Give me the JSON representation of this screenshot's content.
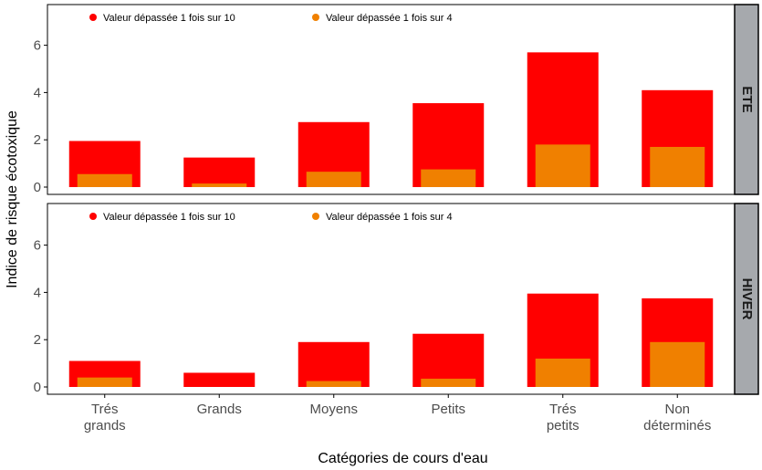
{
  "chart_data": {
    "type": "bar",
    "xlabel": "Catégories de cours d'eau",
    "ylabel": "Indice de risque écotoxique",
    "categories": [
      [
        "Trés",
        "grands"
      ],
      [
        "Grands"
      ],
      [
        "Moyens"
      ],
      [
        "Petits"
      ],
      [
        "Trés",
        "petits"
      ],
      [
        "Non",
        "déterminés"
      ]
    ],
    "ylim": [
      -0.5,
      7.5
    ],
    "yticks": [
      0,
      2,
      4,
      6
    ],
    "legend": [
      {
        "label": "Valeur dépassée 1 fois sur 10",
        "color": "#ff0000"
      },
      {
        "label": "Valeur dépassée 1 fois sur 4",
        "color": "#f08000"
      }
    ],
    "panels": [
      {
        "strip": "ETE",
        "series": [
          {
            "name": "Valeur dépassée 1 fois sur 10",
            "values": [
              1.95,
              1.25,
              2.75,
              3.55,
              5.7,
              4.1
            ]
          },
          {
            "name": "Valeur dépassée 1 fois sur 4",
            "values": [
              0.55,
              0.15,
              0.65,
              0.75,
              1.8,
              1.7
            ]
          }
        ]
      },
      {
        "strip": "HIVER",
        "series": [
          {
            "name": "Valeur dépassée 1 fois sur 10",
            "values": [
              1.1,
              0.6,
              1.9,
              2.25,
              3.95,
              3.75
            ]
          },
          {
            "name": "Valeur dépassée 1 fois sur 4",
            "values": [
              0.4,
              0.0,
              0.25,
              0.35,
              1.2,
              1.9
            ]
          }
        ]
      }
    ]
  },
  "colors": {
    "q90": "#ff0000",
    "q75": "#f08000",
    "strip_bg": "#a6a9ad",
    "axis": "#000000",
    "tick_text": "#4d4d4d"
  }
}
